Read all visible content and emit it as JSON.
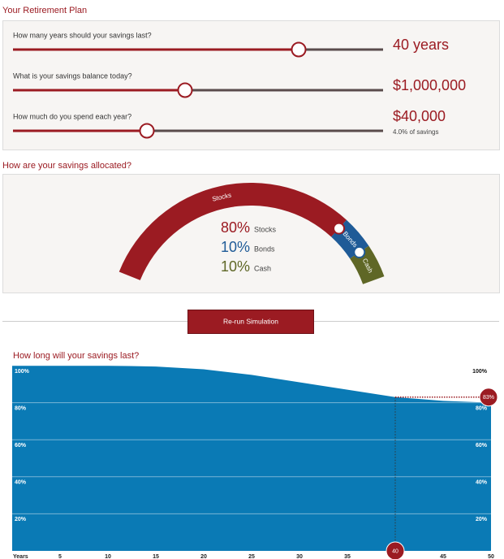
{
  "header": {
    "title": "Your Retirement Plan"
  },
  "plan": {
    "items": [
      {
        "question": "How many years should your savings last?",
        "value": "40 years"
      },
      {
        "question": "What is your savings balance today?",
        "value": "$1,000,000"
      },
      {
        "question": "How much do you spend each year?",
        "value": "$40,000",
        "note": "4.0% of savings"
      }
    ]
  },
  "allocation": {
    "title": "How are your savings allocated?",
    "type": "gauge",
    "categories": [
      "Stocks",
      "Bonds",
      "Cash"
    ],
    "values": [
      80,
      10,
      10
    ],
    "value_labels": [
      "80%",
      "10%",
      "10%"
    ],
    "colors": [
      "#9b1b22",
      "#1f5b97",
      "#5f6726"
    ]
  },
  "button": {
    "label": "Re-run Simulation"
  },
  "chart_data": {
    "type": "area",
    "title": "How long will your savings last?",
    "x": [
      0,
      5,
      10,
      15,
      20,
      25,
      30,
      35,
      40,
      45,
      50
    ],
    "values": [
      100,
      100,
      100,
      99.5,
      98,
      95,
      91,
      87,
      83,
      81,
      80
    ],
    "color": "#0a7ab5",
    "xlim": [
      0,
      50
    ],
    "ylim": [
      0,
      100
    ],
    "xticks": [
      {
        "value": 0,
        "label": "Years"
      },
      5,
      10,
      15,
      20,
      25,
      30,
      35,
      45,
      50
    ],
    "yticks": [
      {
        "value": 20,
        "label": "20%"
      },
      {
        "value": 40,
        "label": "40%"
      },
      {
        "value": 60,
        "label": "60%"
      },
      {
        "value": 80,
        "label": "80%"
      },
      {
        "value": 100,
        "label": "100%"
      }
    ],
    "grid": true,
    "highlight": {
      "x": 40,
      "y": 83,
      "label": "83%"
    }
  }
}
